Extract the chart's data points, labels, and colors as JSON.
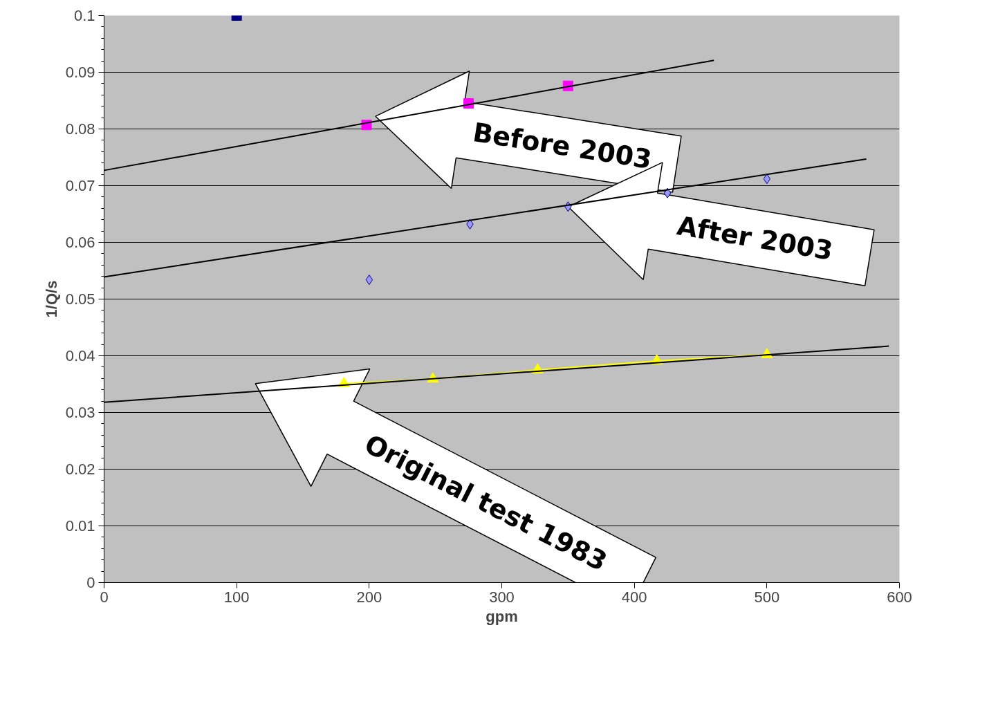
{
  "chart_data": {
    "type": "scatter",
    "xlabel": "gpm",
    "ylabel": "1/Q/s",
    "xlim": [
      0,
      600
    ],
    "xticks": [
      0,
      100,
      200,
      300,
      400,
      500,
      600
    ],
    "ylim": [
      0,
      0.1
    ],
    "yticks": [
      0,
      0.01,
      0.02,
      0.03,
      0.04,
      0.05,
      0.06,
      0.07,
      0.08,
      0.09,
      0.1
    ],
    "grid": "y",
    "series": [
      {
        "marker": "square",
        "color": "#000080",
        "x": [
          100
        ],
        "values": [
          0.1
        ]
      },
      {
        "marker": "square",
        "color": "#ff00ff",
        "x": [
          198,
          275,
          350
        ],
        "values": [
          0.0807,
          0.0845,
          0.0876
        ]
      },
      {
        "marker": "diamond",
        "color": "#9999ff",
        "x": [
          200,
          276,
          350,
          425,
          500
        ],
        "values": [
          0.0534,
          0.0632,
          0.0663,
          0.0687,
          0.0712
        ]
      },
      {
        "type": "line",
        "marker": "triangle",
        "color": "#ffff00",
        "x": [
          181,
          248,
          327,
          417,
          500
        ],
        "values": [
          0.0351,
          0.0359,
          0.0375,
          0.0391,
          0.0402
        ]
      },
      {
        "type": "line",
        "marker": "none",
        "color": "#000000",
        "x": [
          0,
          460
        ],
        "values": [
          0.0727,
          0.0921
        ]
      },
      {
        "type": "line",
        "marker": "none",
        "color": "#000000",
        "x": [
          0,
          575
        ],
        "values": [
          0.0539,
          0.0747
        ]
      },
      {
        "type": "line",
        "marker": "none",
        "color": "#000000",
        "x": [
          0,
          592
        ],
        "values": [
          0.0318,
          0.0417
        ]
      }
    ],
    "annotations": [
      "Before 2003",
      "After 2003",
      "Original test 1983"
    ]
  }
}
